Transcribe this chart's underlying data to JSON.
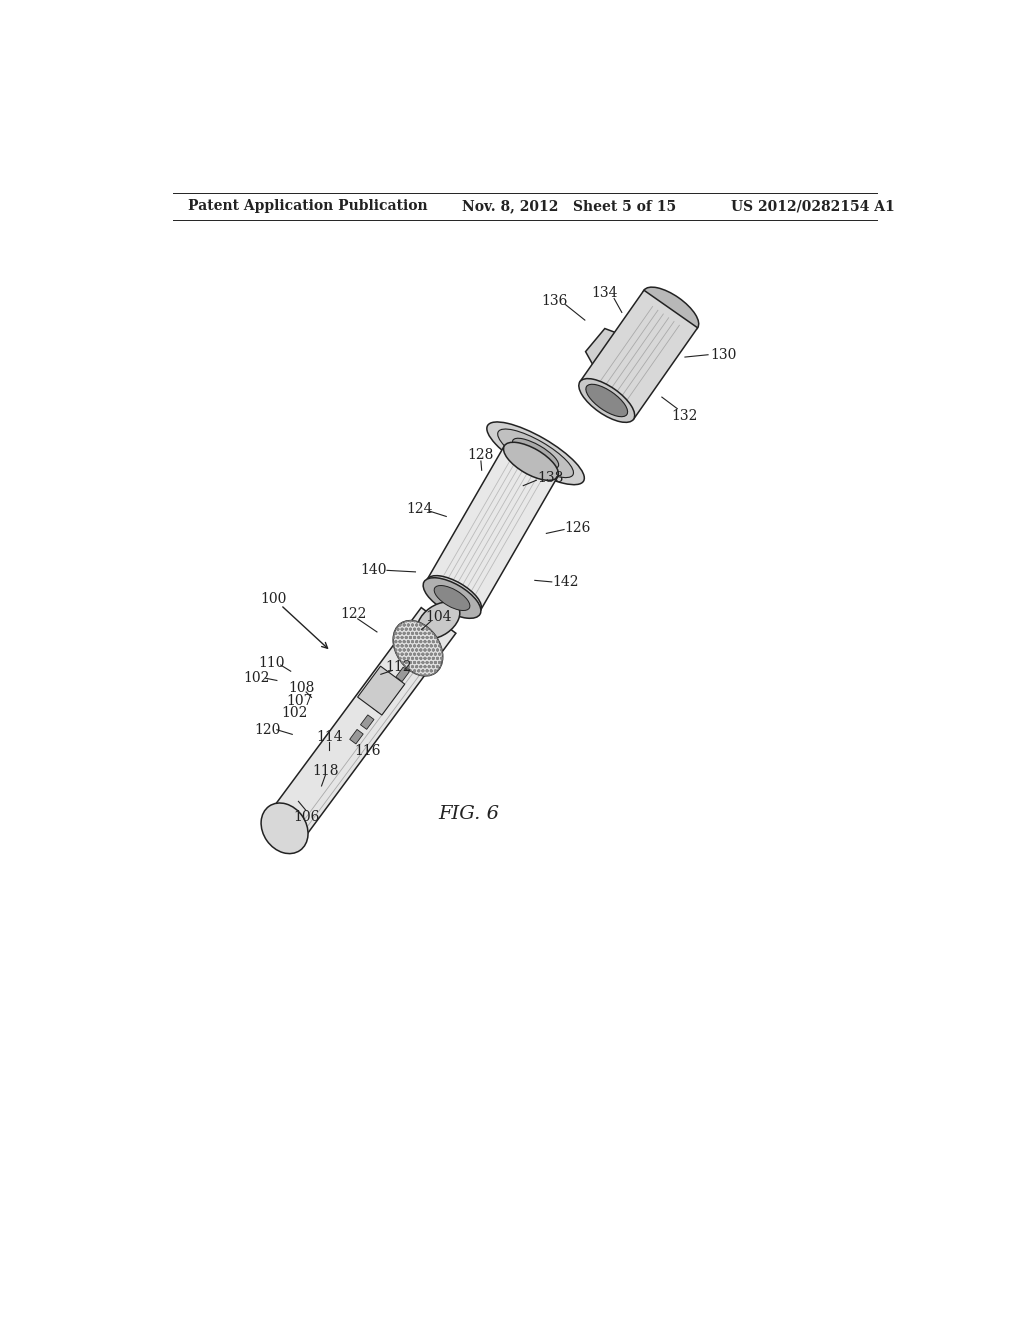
{
  "bg_color": "#ffffff",
  "header_left": "Patent Application Publication",
  "header_mid": "Nov. 8, 2012   Sheet 5 of 15",
  "header_right": "US 2012/0282154 A1",
  "fig_label": "FIG. 6",
  "text_color": "#222222",
  "line_color": "#222222",
  "gray_light": "#e8e8e8",
  "gray_mid": "#cccccc",
  "gray_dark": "#999999"
}
